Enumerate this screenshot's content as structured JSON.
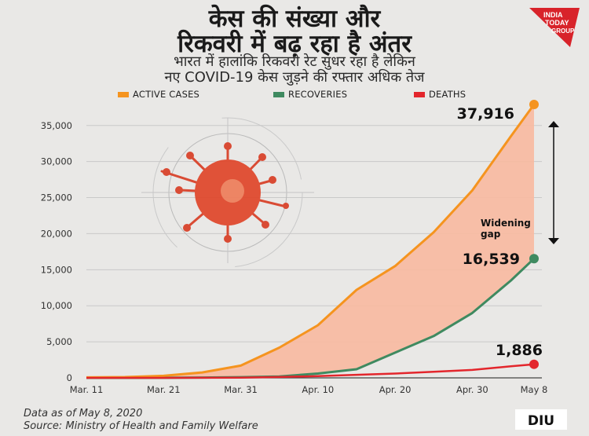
{
  "header": {
    "title_line1": "केस की संख्या और",
    "title_line2": "रिकवरी में बढ़ रहा है अंतर",
    "subtitle_line1": "भारत में हालांकि रिकवरी रेट सुधर रहा है लेकिन",
    "subtitle_line2": "नए COVID-19 केस जुड़ने की रफ्तार अधिक तेज"
  },
  "logo": {
    "line1": "INDIA",
    "line2": "TODAY",
    "line3": "GROUP"
  },
  "brand": {
    "diu": "DIU"
  },
  "colors": {
    "active": "#f5941f",
    "recoveries": "#3f8a60",
    "deaths": "#e3262c",
    "fill": "#f8b9a0"
  },
  "legend": [
    {
      "label": "ACTIVE CASES",
      "color": "#f5941f"
    },
    {
      "label": "RECOVERIES",
      "color": "#3f8a60"
    },
    {
      "label": "DEATHS",
      "color": "#e3262c"
    }
  ],
  "chart_data": {
    "type": "area",
    "x_ticks": [
      "Mar. 11",
      "Mar. 21",
      "Mar. 31",
      "Apr. 10",
      "Apr. 20",
      "Apr. 30",
      "May 8"
    ],
    "x_tick_days": [
      0,
      10,
      20,
      30,
      40,
      50,
      58
    ],
    "y_ticks": [
      "0",
      "5,000",
      "10,000",
      "15,000",
      "20,000",
      "25,000",
      "30,000",
      "35,000"
    ],
    "ylim": [
      0,
      37916
    ],
    "series": [
      {
        "name": "ACTIVE CASES",
        "color": "#f5941f",
        "x": [
          0,
          5,
          10,
          15,
          20,
          25,
          30,
          35,
          40,
          45,
          50,
          55,
          58
        ],
        "values": [
          60,
          110,
          280,
          750,
          1700,
          4200,
          7300,
          12200,
          15500,
          20200,
          26000,
          33500,
          37916
        ]
      },
      {
        "name": "RECOVERIES",
        "color": "#3f8a60",
        "x": [
          0,
          5,
          10,
          15,
          20,
          25,
          30,
          35,
          40,
          45,
          50,
          55,
          58
        ],
        "values": [
          0,
          5,
          15,
          40,
          100,
          200,
          600,
          1200,
          3500,
          5800,
          9000,
          13500,
          16539
        ]
      },
      {
        "name": "DEATHS",
        "color": "#e3262c",
        "x": [
          0,
          5,
          10,
          15,
          20,
          25,
          30,
          35,
          40,
          45,
          50,
          55,
          58
        ],
        "values": [
          1,
          2,
          4,
          15,
          35,
          120,
          240,
          420,
          600,
          850,
          1100,
          1600,
          1886
        ]
      }
    ],
    "end_labels": {
      "active": "37,916",
      "recoveries": "16,539",
      "deaths": "1,886"
    },
    "annotation": {
      "line1": "Widening",
      "line2": "gap"
    }
  },
  "footer": {
    "line1": "Data as of May 8, 2020",
    "line2": "Source: Ministry of Health and Family Welfare"
  }
}
